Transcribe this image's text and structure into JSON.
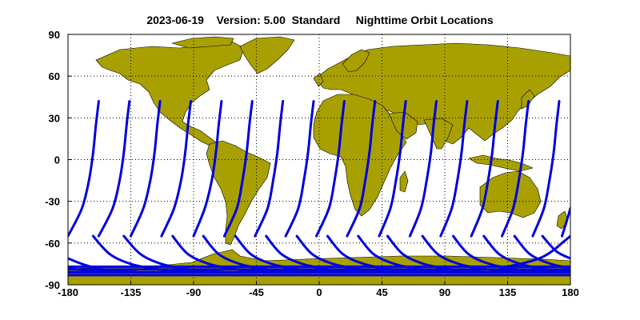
{
  "title": "2023-06-19    Version: 5.00  Standard     Nighttime Orbit Locations",
  "colors": {
    "land": "#a8a000",
    "orbit": "#0000e0",
    "ocean": "#ffffff",
    "frame": "#000000"
  },
  "chart_data": {
    "type": "map",
    "projection": "equirectangular",
    "xlim": [
      -180,
      180
    ],
    "ylim": [
      -90,
      90
    ],
    "grid": true,
    "x_ticks": [
      -180,
      -135,
      -90,
      -45,
      0,
      45,
      90,
      135,
      180
    ],
    "y_ticks": [
      90,
      60,
      30,
      0,
      -30,
      -60,
      -90
    ],
    "x_tick_labels": [
      "-180",
      "-135",
      "-90",
      "-45",
      "0",
      "45",
      "90",
      "135",
      "180"
    ],
    "y_tick_labels": [
      "90",
      "60",
      "30",
      "0",
      "-30",
      "-60",
      "-90"
    ],
    "orbit_tracks": [
      {
        "points": [
          [
            -180,
            -55
          ],
          [
            -170,
            -35
          ],
          [
            -165,
            -15
          ],
          [
            -162,
            5
          ],
          [
            -160,
            25
          ],
          [
            -158,
            42
          ]
        ]
      },
      {
        "points": [
          [
            -158,
            -55
          ],
          [
            -148,
            -35
          ],
          [
            -143,
            -15
          ],
          [
            -140,
            5
          ],
          [
            -138,
            25
          ],
          [
            -136,
            42
          ]
        ]
      },
      {
        "points": [
          [
            -135,
            -55
          ],
          [
            -126,
            -35
          ],
          [
            -121,
            -15
          ],
          [
            -118,
            5
          ],
          [
            -116,
            25
          ],
          [
            -114,
            42
          ]
        ]
      },
      {
        "points": [
          [
            -113,
            -55
          ],
          [
            -104,
            -35
          ],
          [
            -99,
            -15
          ],
          [
            -96,
            5
          ],
          [
            -94,
            25
          ],
          [
            -92,
            42
          ]
        ]
      },
      {
        "points": [
          [
            -90,
            -55
          ],
          [
            -82,
            -35
          ],
          [
            -77,
            -15
          ],
          [
            -74,
            5
          ],
          [
            -72,
            25
          ],
          [
            -70,
            42
          ]
        ]
      },
      {
        "points": [
          [
            -68,
            -55
          ],
          [
            -59,
            -35
          ],
          [
            -55,
            -15
          ],
          [
            -52,
            5
          ],
          [
            -50,
            25
          ],
          [
            -48,
            42
          ]
        ]
      },
      {
        "points": [
          [
            -46,
            -55
          ],
          [
            -37,
            -35
          ],
          [
            -33,
            -15
          ],
          [
            -30,
            5
          ],
          [
            -28,
            25
          ],
          [
            -26,
            42
          ]
        ]
      },
      {
        "points": [
          [
            -24,
            -55
          ],
          [
            -15,
            -35
          ],
          [
            -11,
            -15
          ],
          [
            -8,
            5
          ],
          [
            -6,
            25
          ],
          [
            -4,
            42
          ]
        ]
      },
      {
        "points": [
          [
            -2,
            -55
          ],
          [
            7,
            -35
          ],
          [
            11,
            -15
          ],
          [
            14,
            5
          ],
          [
            16,
            25
          ],
          [
            18,
            42
          ]
        ]
      },
      {
        "points": [
          [
            20,
            -55
          ],
          [
            29,
            -35
          ],
          [
            33,
            -15
          ],
          [
            36,
            5
          ],
          [
            38,
            25
          ],
          [
            40,
            42
          ]
        ]
      },
      {
        "points": [
          [
            43,
            -55
          ],
          [
            51,
            -35
          ],
          [
            55,
            -15
          ],
          [
            58,
            5
          ],
          [
            60,
            25
          ],
          [
            62,
            42
          ]
        ]
      },
      {
        "points": [
          [
            65,
            -55
          ],
          [
            73,
            -35
          ],
          [
            77,
            -15
          ],
          [
            80,
            5
          ],
          [
            82,
            25
          ],
          [
            84,
            42
          ]
        ]
      },
      {
        "points": [
          [
            87,
            -55
          ],
          [
            95,
            -35
          ],
          [
            99,
            -15
          ],
          [
            102,
            5
          ],
          [
            104,
            25
          ],
          [
            106,
            42
          ]
        ]
      },
      {
        "points": [
          [
            109,
            -55
          ],
          [
            117,
            -35
          ],
          [
            121,
            -15
          ],
          [
            124,
            5
          ],
          [
            126,
            25
          ],
          [
            128,
            42
          ]
        ]
      },
      {
        "points": [
          [
            131,
            -55
          ],
          [
            139,
            -35
          ],
          [
            143,
            -15
          ],
          [
            146,
            5
          ],
          [
            148,
            25
          ],
          [
            150,
            42
          ]
        ]
      },
      {
        "points": [
          [
            153,
            -55
          ],
          [
            161,
            -35
          ],
          [
            165,
            -15
          ],
          [
            168,
            5
          ],
          [
            170,
            25
          ],
          [
            172,
            42
          ]
        ]
      },
      {
        "points": [
          [
            174,
            -55
          ],
          [
            178,
            -42
          ],
          [
            180,
            -35
          ]
        ]
      }
    ],
    "southern_arcs": [
      {
        "points": [
          [
            -162,
            -55
          ],
          [
            -150,
            -68
          ],
          [
            -135,
            -75
          ],
          [
            -115,
            -79
          ],
          [
            -90,
            -81
          ]
        ]
      },
      {
        "points": [
          [
            -140,
            -55
          ],
          [
            -128,
            -68
          ],
          [
            -113,
            -75
          ],
          [
            -93,
            -79
          ],
          [
            -68,
            -81
          ]
        ]
      },
      {
        "points": [
          [
            -105,
            -55
          ],
          [
            -94,
            -68
          ],
          [
            -79,
            -75
          ],
          [
            -59,
            -79
          ],
          [
            -34,
            -81
          ]
        ]
      },
      {
        "points": [
          [
            -83,
            -55
          ],
          [
            -72,
            -68
          ],
          [
            -57,
            -75
          ],
          [
            -37,
            -79
          ],
          [
            -12,
            -81
          ]
        ]
      },
      {
        "points": [
          [
            -60,
            -55
          ],
          [
            -49,
            -68
          ],
          [
            -34,
            -75
          ],
          [
            -14,
            -79
          ],
          [
            11,
            -81
          ]
        ]
      },
      {
        "points": [
          [
            -38,
            -55
          ],
          [
            -27,
            -68
          ],
          [
            -12,
            -75
          ],
          [
            8,
            -79
          ],
          [
            33,
            -81
          ]
        ]
      },
      {
        "points": [
          [
            -16,
            -55
          ],
          [
            -5,
            -68
          ],
          [
            10,
            -75
          ],
          [
            30,
            -79
          ],
          [
            55,
            -81
          ]
        ]
      },
      {
        "points": [
          [
            6,
            -55
          ],
          [
            17,
            -68
          ],
          [
            32,
            -75
          ],
          [
            52,
            -79
          ],
          [
            77,
            -81
          ]
        ]
      },
      {
        "points": [
          [
            28,
            -55
          ],
          [
            39,
            -68
          ],
          [
            54,
            -75
          ],
          [
            74,
            -79
          ],
          [
            99,
            -81
          ]
        ]
      },
      {
        "points": [
          [
            49,
            -55
          ],
          [
            60,
            -68
          ],
          [
            75,
            -75
          ],
          [
            95,
            -79
          ],
          [
            120,
            -81
          ]
        ]
      },
      {
        "points": [
          [
            74,
            -55
          ],
          [
            85,
            -68
          ],
          [
            100,
            -75
          ],
          [
            120,
            -79
          ],
          [
            145,
            -81
          ]
        ]
      },
      {
        "points": [
          [
            96,
            -55
          ],
          [
            107,
            -68
          ],
          [
            122,
            -75
          ],
          [
            142,
            -79
          ],
          [
            167,
            -81
          ]
        ]
      },
      {
        "points": [
          [
            118,
            -55
          ],
          [
            129,
            -68
          ],
          [
            144,
            -75
          ],
          [
            164,
            -79
          ],
          [
            180,
            -80
          ]
        ]
      },
      {
        "points": [
          [
            140,
            -55
          ],
          [
            151,
            -68
          ],
          [
            166,
            -75
          ],
          [
            180,
            -78
          ]
        ]
      },
      {
        "points": [
          [
            160,
            -55
          ],
          [
            170,
            -66
          ],
          [
            180,
            -71
          ]
        ]
      },
      {
        "points": [
          [
            -180,
            -71
          ],
          [
            -170,
            -75
          ],
          [
            -155,
            -79
          ],
          [
            -130,
            -81
          ]
        ]
      },
      {
        "points": [
          [
            -180,
            -78
          ],
          [
            -165,
            -80
          ],
          [
            -145,
            -81
          ]
        ]
      },
      {
        "points": [
          [
            180,
            -55
          ],
          [
            174,
            -60
          ],
          [
            168,
            -65
          ],
          [
            160,
            -70
          ],
          [
            148,
            -74
          ],
          [
            130,
            -78
          ]
        ]
      }
    ],
    "bottom_bands": [
      -77,
      -79,
      -81,
      -83
    ]
  }
}
